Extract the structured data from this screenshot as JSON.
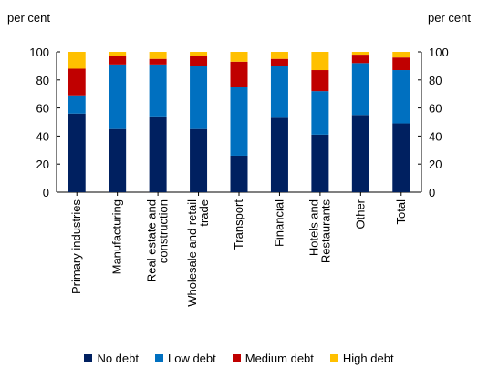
{
  "chart_data": {
    "type": "bar",
    "stacked": true,
    "unit_left": "per cent",
    "unit_right": "per cent",
    "ylim": [
      0,
      100
    ],
    "yticks": [
      0,
      20,
      40,
      60,
      80,
      100
    ],
    "grid": false,
    "legend_position": "bottom",
    "categories": [
      "Primary industries",
      "Manufacturing",
      "Real estate and construction",
      "Wholesale and retail trade",
      "Transport",
      "Financial",
      "Hotels and Restaurants",
      "Other",
      "Total"
    ],
    "category_lines": [
      [
        "Primary industries"
      ],
      [
        "Manufacturing"
      ],
      [
        "Real estate and",
        "construction"
      ],
      [
        "Wholesale and retail",
        "trade"
      ],
      [
        "Transport"
      ],
      [
        "Financial"
      ],
      [
        "Hotels and",
        "Restaurants"
      ],
      [
        "Other"
      ],
      [
        "Total"
      ]
    ],
    "series": [
      {
        "name": "No debt",
        "color": "#002060",
        "values": [
          56,
          45,
          54,
          45,
          26,
          53,
          41,
          55,
          49
        ]
      },
      {
        "name": "Low debt",
        "color": "#0070C0",
        "values": [
          13,
          46,
          37,
          45,
          49,
          37,
          31,
          37,
          38
        ]
      },
      {
        "name": "Medium debt",
        "color": "#C00000",
        "values": [
          19,
          6,
          4,
          7,
          18,
          5,
          15,
          6,
          9
        ]
      },
      {
        "name": "High debt",
        "color": "#FFC000",
        "values": [
          12,
          3,
          5,
          3,
          7,
          5,
          13,
          2,
          4
        ]
      }
    ]
  }
}
